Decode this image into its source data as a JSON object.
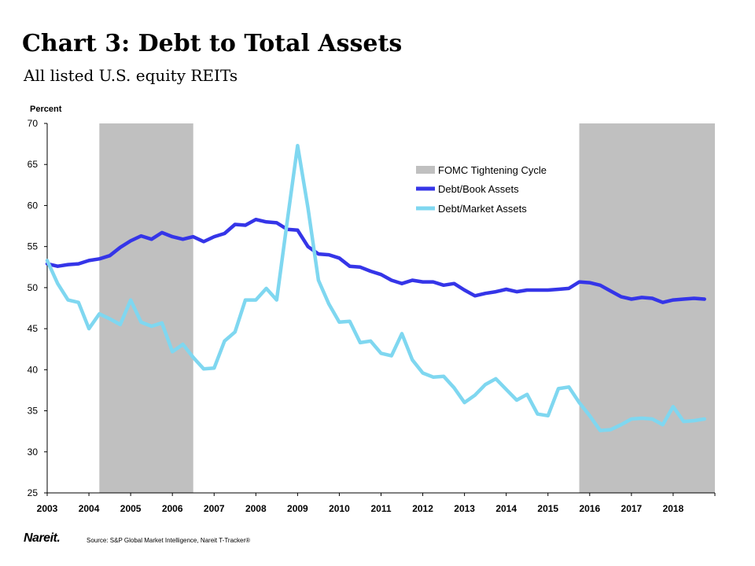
{
  "title": "Chart 3: Debt to Total Assets",
  "subtitle": "All listed U.S. equity REITs",
  "source": "Source: S&P Global Market Intelligence, Nareit T-Tracker®",
  "logo": "Nareit.",
  "colors": {
    "shade": "#c0c0c0",
    "book": "#3535e8",
    "market": "#7fd7f0",
    "axis": "#000000"
  },
  "chart_data": {
    "type": "line",
    "title": "",
    "ylabel": "Percent",
    "xlabel": "",
    "ylim": [
      25,
      70
    ],
    "xlim": [
      2003.0,
      2019.0
    ],
    "yticks": [
      25,
      30,
      35,
      40,
      45,
      50,
      55,
      60,
      65,
      70
    ],
    "xticks": [
      "2003",
      "2004",
      "2005",
      "2006",
      "2007",
      "2008",
      "2009",
      "2010",
      "2011",
      "2012",
      "2013",
      "2014",
      "2015",
      "2016",
      "2017",
      "2018"
    ],
    "legend_position": "top-right",
    "shaded_periods": {
      "name": "FOMC Tightening Cycle",
      "ranges": [
        [
          2004.25,
          2006.5
        ],
        [
          2015.75,
          2019.0
        ]
      ]
    },
    "x": [
      2003.0,
      2003.25,
      2003.5,
      2003.75,
      2004.0,
      2004.25,
      2004.5,
      2004.75,
      2005.0,
      2005.25,
      2005.5,
      2005.75,
      2006.0,
      2006.25,
      2006.5,
      2006.75,
      2007.0,
      2007.25,
      2007.5,
      2007.75,
      2008.0,
      2008.25,
      2008.5,
      2008.75,
      2009.0,
      2009.25,
      2009.5,
      2009.75,
      2010.0,
      2010.25,
      2010.5,
      2010.75,
      2011.0,
      2011.25,
      2011.5,
      2011.75,
      2012.0,
      2012.25,
      2012.5,
      2012.75,
      2013.0,
      2013.25,
      2013.5,
      2013.75,
      2014.0,
      2014.25,
      2014.5,
      2014.75,
      2015.0,
      2015.25,
      2015.5,
      2015.75,
      2016.0,
      2016.25,
      2016.5,
      2016.75,
      2017.0,
      2017.25,
      2017.5,
      2017.75,
      2018.0,
      2018.25,
      2018.5,
      2018.75
    ],
    "series": [
      {
        "name": "Debt/Book Assets",
        "color": "#3535e8",
        "values": [
          52.9,
          52.6,
          52.8,
          52.9,
          53.3,
          53.5,
          53.9,
          54.9,
          55.7,
          56.3,
          55.9,
          56.7,
          56.2,
          55.9,
          56.2,
          55.6,
          56.2,
          56.6,
          57.7,
          57.6,
          58.3,
          58.0,
          57.9,
          57.1,
          57.0,
          55.0,
          54.1,
          54.0,
          53.6,
          52.6,
          52.5,
          52.0,
          51.6,
          50.9,
          50.5,
          50.9,
          50.7,
          50.7,
          50.3,
          50.5,
          49.7,
          49.0,
          49.3,
          49.5,
          49.8,
          49.5,
          49.7,
          49.7,
          49.7,
          49.8,
          49.9,
          50.7,
          50.6,
          50.3,
          49.6,
          48.9,
          48.6,
          48.8,
          48.7,
          48.2,
          48.5,
          48.6,
          48.7,
          48.6
        ]
      },
      {
        "name": "Debt/Market Assets",
        "color": "#7fd7f0",
        "values": [
          53.3,
          50.5,
          48.5,
          48.2,
          45.0,
          46.8,
          46.2,
          45.5,
          48.5,
          45.8,
          45.3,
          45.7,
          42.2,
          43.1,
          41.5,
          40.1,
          40.2,
          43.5,
          44.6,
          48.5,
          48.5,
          49.9,
          48.5,
          58.0,
          67.3,
          59.7,
          50.9,
          48.0,
          45.8,
          45.9,
          43.3,
          43.5,
          42.0,
          41.7,
          44.4,
          41.2,
          39.6,
          39.1,
          39.2,
          37.8,
          36.0,
          36.9,
          38.2,
          38.9,
          37.6,
          36.3,
          37.0,
          34.6,
          34.4,
          37.7,
          37.9,
          36.0,
          34.4,
          32.6,
          32.7,
          33.3,
          34.0,
          34.1,
          34.0,
          33.3,
          35.5,
          33.7,
          33.8,
          34.0
        ]
      }
    ]
  }
}
